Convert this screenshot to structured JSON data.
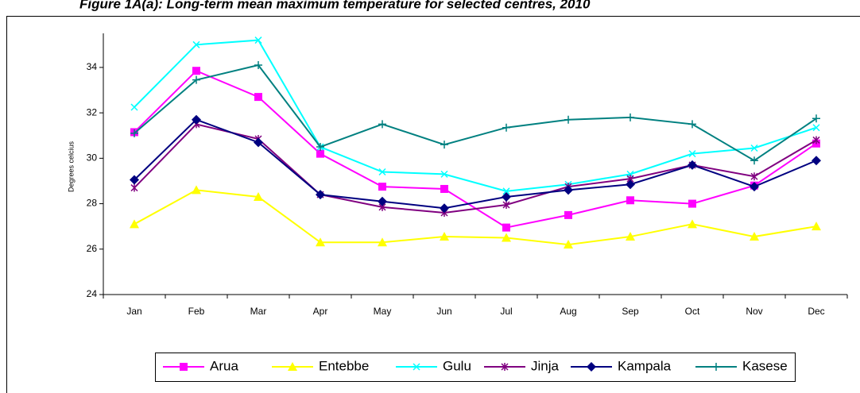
{
  "chart_data": {
    "type": "line",
    "title": "Figure 1A(a): Long-term mean maximum temperature for selected centres, 2010",
    "y_label": "Degrees celcius",
    "categories": [
      "Jan",
      "Feb",
      "Mar",
      "Apr",
      "May",
      "Jun",
      "Jul",
      "Aug",
      "Sep",
      "Oct",
      "Nov",
      "Dec"
    ],
    "ylim": [
      24,
      35.5
    ],
    "yticks": [
      24,
      26,
      28,
      30,
      32,
      34
    ],
    "grid": false,
    "legend": "bottom",
    "series": [
      {
        "name": "Arua",
        "color": "#ff00ff",
        "marker": "square",
        "values": [
          31.15,
          33.85,
          32.7,
          30.2,
          28.75,
          28.65,
          26.95,
          27.5,
          28.15,
          28.0,
          28.8,
          30.65
        ]
      },
      {
        "name": "Entebbe",
        "color": "#ffff00",
        "marker": "triangle",
        "values": [
          27.1,
          28.6,
          28.3,
          26.3,
          26.3,
          26.55,
          26.5,
          26.2,
          26.55,
          27.1,
          26.55,
          27.0
        ]
      },
      {
        "name": "Gulu",
        "color": "#00ffff",
        "marker": "x",
        "values": [
          32.25,
          35.0,
          35.2,
          30.5,
          29.4,
          29.3,
          28.55,
          28.85,
          29.3,
          30.2,
          30.45,
          31.35
        ]
      },
      {
        "name": "Jinja",
        "color": "#800080",
        "marker": "asterisk",
        "values": [
          28.7,
          31.5,
          30.85,
          28.4,
          27.85,
          27.6,
          27.95,
          28.75,
          29.1,
          29.7,
          29.2,
          30.8
        ]
      },
      {
        "name": "Kampala",
        "color": "#000080",
        "marker": "diamond",
        "values": [
          29.05,
          31.7,
          30.7,
          28.4,
          28.1,
          27.8,
          28.3,
          28.6,
          28.85,
          29.7,
          28.75,
          29.9
        ]
      },
      {
        "name": "Kasese",
        "color": "#008080",
        "marker": "plus",
        "values": [
          31.1,
          33.45,
          34.1,
          30.5,
          31.5,
          30.6,
          31.35,
          31.7,
          31.8,
          31.5,
          29.9,
          31.75
        ]
      }
    ]
  }
}
